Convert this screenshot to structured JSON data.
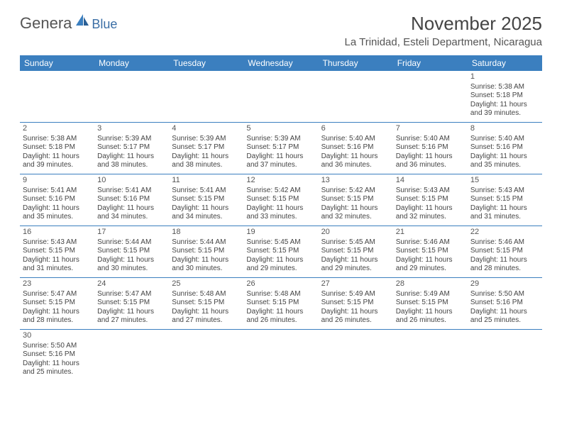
{
  "logo": {
    "general": "Genera",
    "blue": "Blue"
  },
  "title": "November 2025",
  "location": "La Trinidad, Esteli Department, Nicaragua",
  "day_names": [
    "Sunday",
    "Monday",
    "Tuesday",
    "Wednesday",
    "Thursday",
    "Friday",
    "Saturday"
  ],
  "colors": {
    "header_bg": "#3b7fbf",
    "header_text": "#ffffff",
    "text": "#444444",
    "line": "#3b7fbf"
  },
  "weeks": [
    [
      null,
      null,
      null,
      null,
      null,
      null,
      {
        "n": "1",
        "sunrise": "Sunrise: 5:38 AM",
        "sunset": "Sunset: 5:18 PM",
        "daylight1": "Daylight: 11 hours",
        "daylight2": "and 39 minutes."
      }
    ],
    [
      {
        "n": "2",
        "sunrise": "Sunrise: 5:38 AM",
        "sunset": "Sunset: 5:18 PM",
        "daylight1": "Daylight: 11 hours",
        "daylight2": "and 39 minutes."
      },
      {
        "n": "3",
        "sunrise": "Sunrise: 5:39 AM",
        "sunset": "Sunset: 5:17 PM",
        "daylight1": "Daylight: 11 hours",
        "daylight2": "and 38 minutes."
      },
      {
        "n": "4",
        "sunrise": "Sunrise: 5:39 AM",
        "sunset": "Sunset: 5:17 PM",
        "daylight1": "Daylight: 11 hours",
        "daylight2": "and 38 minutes."
      },
      {
        "n": "5",
        "sunrise": "Sunrise: 5:39 AM",
        "sunset": "Sunset: 5:17 PM",
        "daylight1": "Daylight: 11 hours",
        "daylight2": "and 37 minutes."
      },
      {
        "n": "6",
        "sunrise": "Sunrise: 5:40 AM",
        "sunset": "Sunset: 5:16 PM",
        "daylight1": "Daylight: 11 hours",
        "daylight2": "and 36 minutes."
      },
      {
        "n": "7",
        "sunrise": "Sunrise: 5:40 AM",
        "sunset": "Sunset: 5:16 PM",
        "daylight1": "Daylight: 11 hours",
        "daylight2": "and 36 minutes."
      },
      {
        "n": "8",
        "sunrise": "Sunrise: 5:40 AM",
        "sunset": "Sunset: 5:16 PM",
        "daylight1": "Daylight: 11 hours",
        "daylight2": "and 35 minutes."
      }
    ],
    [
      {
        "n": "9",
        "sunrise": "Sunrise: 5:41 AM",
        "sunset": "Sunset: 5:16 PM",
        "daylight1": "Daylight: 11 hours",
        "daylight2": "and 35 minutes."
      },
      {
        "n": "10",
        "sunrise": "Sunrise: 5:41 AM",
        "sunset": "Sunset: 5:16 PM",
        "daylight1": "Daylight: 11 hours",
        "daylight2": "and 34 minutes."
      },
      {
        "n": "11",
        "sunrise": "Sunrise: 5:41 AM",
        "sunset": "Sunset: 5:15 PM",
        "daylight1": "Daylight: 11 hours",
        "daylight2": "and 34 minutes."
      },
      {
        "n": "12",
        "sunrise": "Sunrise: 5:42 AM",
        "sunset": "Sunset: 5:15 PM",
        "daylight1": "Daylight: 11 hours",
        "daylight2": "and 33 minutes."
      },
      {
        "n": "13",
        "sunrise": "Sunrise: 5:42 AM",
        "sunset": "Sunset: 5:15 PM",
        "daylight1": "Daylight: 11 hours",
        "daylight2": "and 32 minutes."
      },
      {
        "n": "14",
        "sunrise": "Sunrise: 5:43 AM",
        "sunset": "Sunset: 5:15 PM",
        "daylight1": "Daylight: 11 hours",
        "daylight2": "and 32 minutes."
      },
      {
        "n": "15",
        "sunrise": "Sunrise: 5:43 AM",
        "sunset": "Sunset: 5:15 PM",
        "daylight1": "Daylight: 11 hours",
        "daylight2": "and 31 minutes."
      }
    ],
    [
      {
        "n": "16",
        "sunrise": "Sunrise: 5:43 AM",
        "sunset": "Sunset: 5:15 PM",
        "daylight1": "Daylight: 11 hours",
        "daylight2": "and 31 minutes."
      },
      {
        "n": "17",
        "sunrise": "Sunrise: 5:44 AM",
        "sunset": "Sunset: 5:15 PM",
        "daylight1": "Daylight: 11 hours",
        "daylight2": "and 30 minutes."
      },
      {
        "n": "18",
        "sunrise": "Sunrise: 5:44 AM",
        "sunset": "Sunset: 5:15 PM",
        "daylight1": "Daylight: 11 hours",
        "daylight2": "and 30 minutes."
      },
      {
        "n": "19",
        "sunrise": "Sunrise: 5:45 AM",
        "sunset": "Sunset: 5:15 PM",
        "daylight1": "Daylight: 11 hours",
        "daylight2": "and 29 minutes."
      },
      {
        "n": "20",
        "sunrise": "Sunrise: 5:45 AM",
        "sunset": "Sunset: 5:15 PM",
        "daylight1": "Daylight: 11 hours",
        "daylight2": "and 29 minutes."
      },
      {
        "n": "21",
        "sunrise": "Sunrise: 5:46 AM",
        "sunset": "Sunset: 5:15 PM",
        "daylight1": "Daylight: 11 hours",
        "daylight2": "and 29 minutes."
      },
      {
        "n": "22",
        "sunrise": "Sunrise: 5:46 AM",
        "sunset": "Sunset: 5:15 PM",
        "daylight1": "Daylight: 11 hours",
        "daylight2": "and 28 minutes."
      }
    ],
    [
      {
        "n": "23",
        "sunrise": "Sunrise: 5:47 AM",
        "sunset": "Sunset: 5:15 PM",
        "daylight1": "Daylight: 11 hours",
        "daylight2": "and 28 minutes."
      },
      {
        "n": "24",
        "sunrise": "Sunrise: 5:47 AM",
        "sunset": "Sunset: 5:15 PM",
        "daylight1": "Daylight: 11 hours",
        "daylight2": "and 27 minutes."
      },
      {
        "n": "25",
        "sunrise": "Sunrise: 5:48 AM",
        "sunset": "Sunset: 5:15 PM",
        "daylight1": "Daylight: 11 hours",
        "daylight2": "and 27 minutes."
      },
      {
        "n": "26",
        "sunrise": "Sunrise: 5:48 AM",
        "sunset": "Sunset: 5:15 PM",
        "daylight1": "Daylight: 11 hours",
        "daylight2": "and 26 minutes."
      },
      {
        "n": "27",
        "sunrise": "Sunrise: 5:49 AM",
        "sunset": "Sunset: 5:15 PM",
        "daylight1": "Daylight: 11 hours",
        "daylight2": "and 26 minutes."
      },
      {
        "n": "28",
        "sunrise": "Sunrise: 5:49 AM",
        "sunset": "Sunset: 5:15 PM",
        "daylight1": "Daylight: 11 hours",
        "daylight2": "and 26 minutes."
      },
      {
        "n": "29",
        "sunrise": "Sunrise: 5:50 AM",
        "sunset": "Sunset: 5:16 PM",
        "daylight1": "Daylight: 11 hours",
        "daylight2": "and 25 minutes."
      }
    ],
    [
      {
        "n": "30",
        "sunrise": "Sunrise: 5:50 AM",
        "sunset": "Sunset: 5:16 PM",
        "daylight1": "Daylight: 11 hours",
        "daylight2": "and 25 minutes."
      },
      null,
      null,
      null,
      null,
      null,
      null
    ]
  ]
}
